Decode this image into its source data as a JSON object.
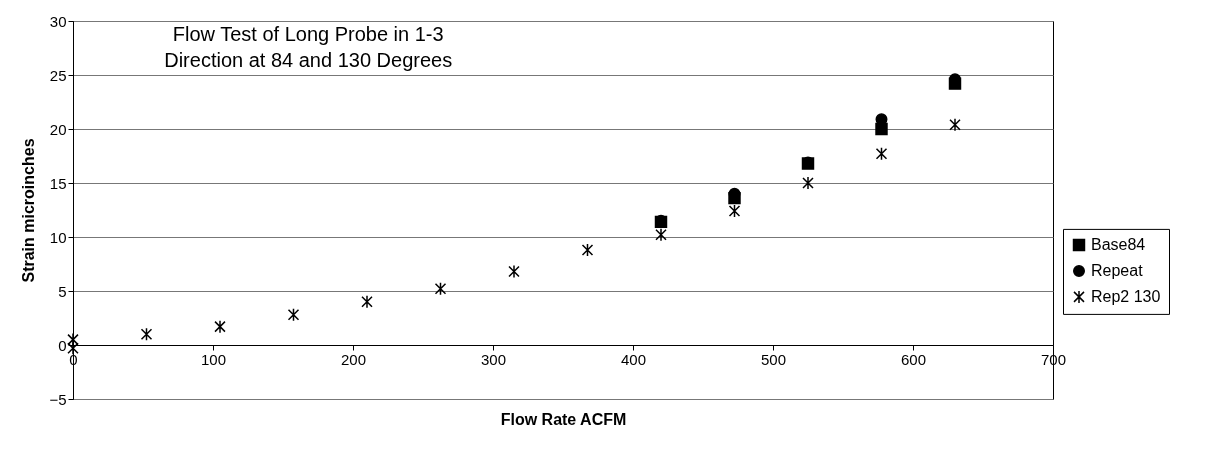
{
  "chart_data": {
    "type": "scatter",
    "title": "Flow Test of Long Probe in 1-3\nDirection at 84 and 130 Degrees",
    "xlabel": "Flow Rate  ACFM",
    "ylabel": "Strain  microinches",
    "xlim": [
      0,
      700
    ],
    "xticks": [
      0,
      100,
      200,
      300,
      400,
      500,
      600,
      700
    ],
    "ylim": [
      -5,
      30
    ],
    "yticks": [
      -5,
      0,
      5,
      10,
      15,
      20,
      25,
      30
    ],
    "grid": "y",
    "legend": "right",
    "series": [
      {
        "name": "Base84",
        "color": "#000000",
        "marker": "square",
        "x": [
          420,
          472.5,
          525,
          577.5,
          630
        ],
        "values": [
          11.4,
          13.6,
          16.8,
          20,
          24.2
        ]
      },
      {
        "name": "Repeat",
        "color": "#000000",
        "marker": "circle",
        "x": [
          420,
          472.5,
          525,
          577.5,
          630
        ],
        "values": [
          11.5,
          14,
          16.9,
          20.9,
          24.6
        ]
      },
      {
        "name": "Rep2 130",
        "color": "#000000",
        "marker": "cross",
        "x": [
          0,
          0,
          52.5,
          105,
          157.5,
          210,
          262.5,
          315,
          367.5,
          420,
          472.5,
          525,
          577.5,
          630
        ],
        "values": [
          0.5,
          -0.3,
          1,
          1.7,
          2.8,
          4,
          5.2,
          6.8,
          8.8,
          10.2,
          12.4,
          15,
          17.7,
          20.4
        ]
      }
    ]
  }
}
